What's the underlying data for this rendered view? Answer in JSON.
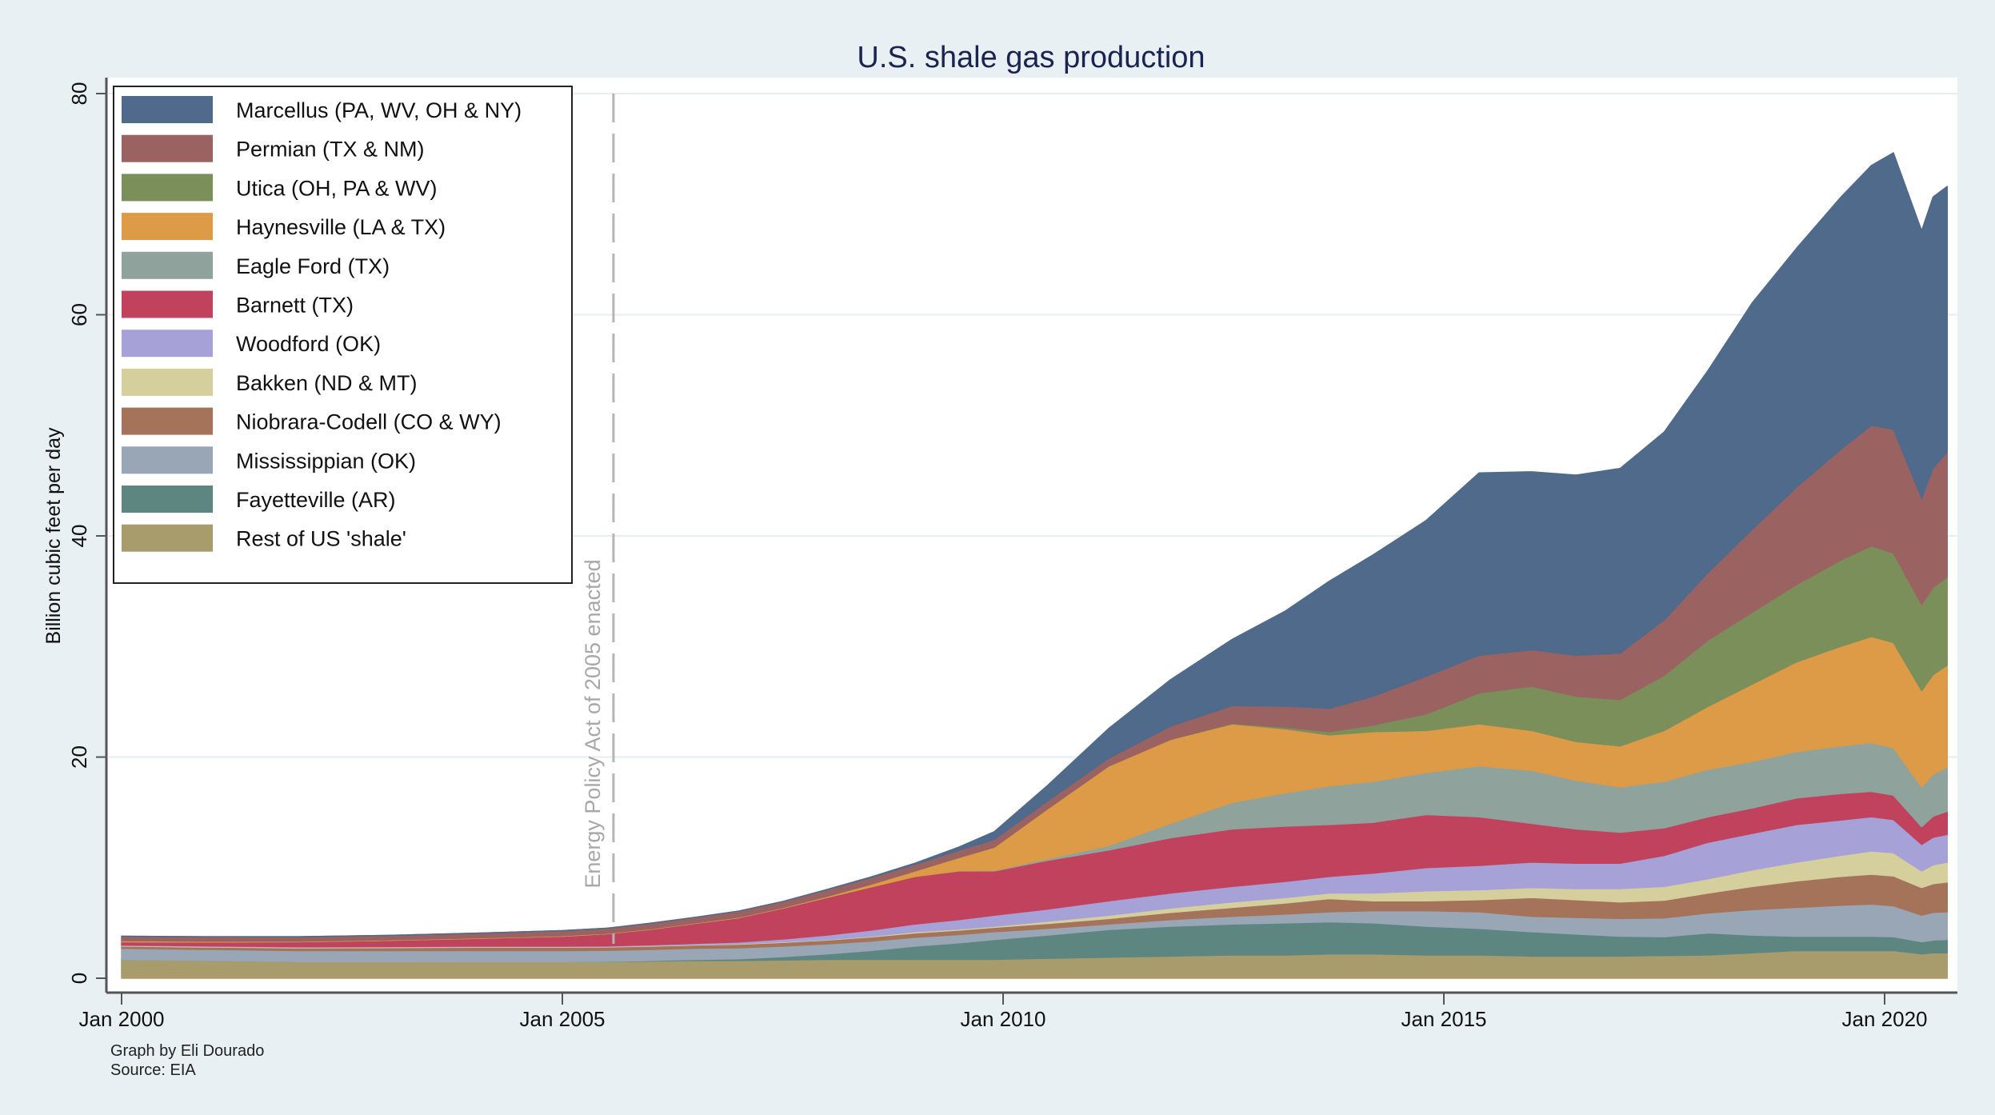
{
  "chart_data": {
    "type": "area",
    "stacked": true,
    "title": "U.S. shale gas production",
    "xlabel": "",
    "ylabel": "Billion cubic feet per day",
    "ylim": [
      0,
      80
    ],
    "xlim_years": [
      2000.0,
      2020.75
    ],
    "yticks": [
      0,
      20,
      40,
      60,
      80
    ],
    "xticks": [
      {
        "value": 2000,
        "label": "Jan 2000"
      },
      {
        "value": 2005,
        "label": "Jan 2005"
      },
      {
        "value": 2010,
        "label": "Jan 2010"
      },
      {
        "value": 2015,
        "label": "Jan 2015"
      },
      {
        "value": 2020,
        "label": "Jan 2020"
      }
    ],
    "grid": true,
    "legend_position": "top-left",
    "annotation": {
      "x": 2005.58,
      "label": "Energy Policy Act of 2005 enacted",
      "style": "dashed-vertical-line"
    },
    "notes": [
      "Graph by Eli Dourado",
      "Source: EIA"
    ],
    "x": [
      2000.0,
      2001.0,
      2002.0,
      2003.0,
      2004.0,
      2005.0,
      2005.5,
      2006.0,
      2006.5,
      2007.0,
      2007.5,
      2008.0,
      2008.5,
      2009.0,
      2009.5,
      2009.9,
      2010.5,
      2011.2,
      2011.9,
      2012.6,
      2013.2,
      2013.7,
      2014.2,
      2014.8,
      2015.4,
      2016.0,
      2016.5,
      2017.0,
      2017.5,
      2018.0,
      2018.5,
      2019.0,
      2019.5,
      2019.85,
      2020.1,
      2020.42,
      2020.55,
      2020.71
    ],
    "series": [
      {
        "name": "Rest of US 'shale'",
        "color": "#a89c6c",
        "values": [
          1.7,
          1.6,
          1.5,
          1.5,
          1.5,
          1.5,
          1.5,
          1.55,
          1.6,
          1.6,
          1.65,
          1.7,
          1.7,
          1.7,
          1.7,
          1.7,
          1.8,
          1.9,
          2.0,
          2.1,
          2.1,
          2.2,
          2.2,
          2.1,
          2.1,
          2.0,
          2.0,
          2.0,
          2.05,
          2.1,
          2.3,
          2.5,
          2.5,
          2.5,
          2.5,
          2.2,
          2.3,
          2.3
        ]
      },
      {
        "name": "Fayetteville (AR)",
        "color": "#5e8681",
        "values": [
          0.0,
          0.0,
          0.0,
          0.0,
          0.0,
          0.0,
          0.02,
          0.05,
          0.1,
          0.15,
          0.3,
          0.5,
          0.8,
          1.2,
          1.5,
          1.8,
          2.1,
          2.5,
          2.7,
          2.8,
          2.9,
          2.9,
          2.8,
          2.6,
          2.4,
          2.2,
          2.0,
          1.8,
          1.7,
          2.0,
          1.6,
          1.3,
          1.3,
          1.3,
          1.25,
          1.1,
          1.15,
          1.2
        ]
      },
      {
        "name": "Mississippian (OK)",
        "color": "#98a6b6",
        "values": [
          1.0,
          1.0,
          1.0,
          1.0,
          1.0,
          1.0,
          1.0,
          1.0,
          1.0,
          1.0,
          0.95,
          0.9,
          0.85,
          0.8,
          0.75,
          0.7,
          0.6,
          0.5,
          0.6,
          0.7,
          0.8,
          0.9,
          1.1,
          1.4,
          1.5,
          1.4,
          1.5,
          1.6,
          1.7,
          1.8,
          2.3,
          2.6,
          2.8,
          2.9,
          2.8,
          2.4,
          2.5,
          2.5
        ]
      },
      {
        "name": "Niobrara-Codell (CO & WY)",
        "color": "#a5735a",
        "values": [
          0.2,
          0.22,
          0.25,
          0.27,
          0.3,
          0.3,
          0.3,
          0.3,
          0.3,
          0.32,
          0.34,
          0.35,
          0.38,
          0.4,
          0.4,
          0.4,
          0.45,
          0.5,
          0.65,
          0.8,
          1.0,
          1.2,
          0.9,
          0.9,
          1.1,
          1.7,
          1.6,
          1.5,
          1.6,
          1.8,
          2.1,
          2.4,
          2.6,
          2.7,
          2.7,
          2.5,
          2.6,
          2.7
        ]
      },
      {
        "name": "Bakken (ND & MT)",
        "color": "#d4cf9c",
        "values": [
          0.05,
          0.05,
          0.05,
          0.05,
          0.05,
          0.05,
          0.05,
          0.05,
          0.05,
          0.05,
          0.05,
          0.05,
          0.07,
          0.1,
          0.1,
          0.1,
          0.2,
          0.3,
          0.4,
          0.5,
          0.5,
          0.5,
          0.7,
          0.9,
          0.9,
          0.9,
          1.0,
          1.2,
          1.25,
          1.3,
          1.5,
          1.7,
          1.9,
          2.1,
          2.1,
          1.5,
          1.7,
          1.8
        ]
      },
      {
        "name": "Woodford (OK)",
        "color": "#a6a1d6",
        "values": [
          0.05,
          0.05,
          0.05,
          0.05,
          0.05,
          0.05,
          0.05,
          0.07,
          0.1,
          0.15,
          0.25,
          0.4,
          0.55,
          0.7,
          0.85,
          1.0,
          1.1,
          1.3,
          1.35,
          1.4,
          1.45,
          1.5,
          1.8,
          2.1,
          2.2,
          2.3,
          2.3,
          2.3,
          2.8,
          3.3,
          3.3,
          3.4,
          3.2,
          3.1,
          3.0,
          2.4,
          2.5,
          2.5
        ]
      },
      {
        "name": "Barnett (TX)",
        "color": "#c1425c",
        "values": [
          0.3,
          0.35,
          0.45,
          0.55,
          0.7,
          0.9,
          1.1,
          1.4,
          1.8,
          2.2,
          2.8,
          3.4,
          3.9,
          4.3,
          4.4,
          4.0,
          4.4,
          4.6,
          5.0,
          5.2,
          5.0,
          4.7,
          4.6,
          4.8,
          4.4,
          3.5,
          3.1,
          2.8,
          2.5,
          2.3,
          2.3,
          2.4,
          2.4,
          2.3,
          2.2,
          1.6,
          1.9,
          2.1
        ]
      },
      {
        "name": "Eagle Ford (TX)",
        "color": "#8fa39c",
        "values": [
          0.0,
          0.0,
          0.0,
          0.0,
          0.0,
          0.0,
          0.0,
          0.0,
          0.0,
          0.0,
          0.0,
          0.0,
          0.0,
          0.0,
          0.02,
          0.05,
          0.15,
          0.4,
          1.3,
          2.4,
          3.0,
          3.5,
          3.7,
          3.8,
          4.6,
          4.8,
          4.4,
          4.1,
          4.2,
          4.3,
          4.2,
          4.2,
          4.3,
          4.4,
          4.3,
          3.6,
          3.8,
          4.0
        ]
      },
      {
        "name": "Haynesville (LA & TX)",
        "color": "#dd9a47",
        "values": [
          0.1,
          0.08,
          0.05,
          0.05,
          0.05,
          0.05,
          0.05,
          0.05,
          0.05,
          0.05,
          0.05,
          0.1,
          0.25,
          0.5,
          1.2,
          2.1,
          4.5,
          7.2,
          7.6,
          7.1,
          5.8,
          4.6,
          4.5,
          3.8,
          3.8,
          3.6,
          3.5,
          3.7,
          4.6,
          5.7,
          7.0,
          8.1,
          9.0,
          9.6,
          9.5,
          8.7,
          9.0,
          9.2
        ]
      },
      {
        "name": "Utica (OH, PA & WV)",
        "color": "#7b8f5a",
        "values": [
          0.0,
          0.0,
          0.0,
          0.0,
          0.0,
          0.0,
          0.0,
          0.0,
          0.0,
          0.0,
          0.0,
          0.0,
          0.0,
          0.0,
          0.0,
          0.0,
          0.0,
          0.0,
          0.0,
          0.05,
          0.15,
          0.3,
          0.6,
          1.5,
          2.8,
          4.0,
          4.1,
          4.2,
          5.0,
          6.0,
          6.5,
          7.0,
          7.8,
          8.2,
          8.1,
          7.8,
          7.9,
          8.0
        ]
      },
      {
        "name": "Permian (TX & NM)",
        "color": "#9b6262",
        "values": [
          0.4,
          0.4,
          0.4,
          0.4,
          0.42,
          0.45,
          0.45,
          0.5,
          0.5,
          0.55,
          0.55,
          0.6,
          0.6,
          0.6,
          0.65,
          0.7,
          0.7,
          0.7,
          1.2,
          1.6,
          1.9,
          2.1,
          2.6,
          3.4,
          3.4,
          3.3,
          3.7,
          4.2,
          5.0,
          6.1,
          7.5,
          8.8,
          10.0,
          10.9,
          11.2,
          9.6,
          10.8,
          11.3
        ]
      },
      {
        "name": "Marcellus (PA, WV, OH & NY)",
        "color": "#4f6a8a",
        "values": [
          0.0,
          0.0,
          0.0,
          0.0,
          0.0,
          0.0,
          0.0,
          0.0,
          0.0,
          0.0,
          0.0,
          0.02,
          0.05,
          0.1,
          0.3,
          0.7,
          1.4,
          2.7,
          4.2,
          6.0,
          8.6,
          11.5,
          12.8,
          14.1,
          16.5,
          16.1,
          16.3,
          16.7,
          17.0,
          18.3,
          20.5,
          21.6,
          22.8,
          23.5,
          25.0,
          24.2,
          24.5,
          24.0
        ]
      }
    ]
  }
}
